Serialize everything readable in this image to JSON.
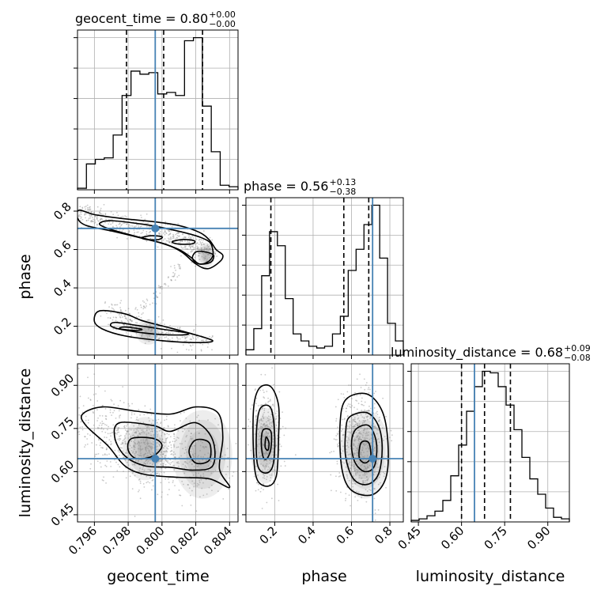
{
  "colors": {
    "truth": "#4682b4",
    "hist": "#000000",
    "grid": "#b0b0b0",
    "scatter": "#8a8a8a"
  },
  "chart_data": {
    "type": "corner",
    "parameters": [
      "geocent_time",
      "phase",
      "luminosity_distance"
    ],
    "truths": {
      "geocent_time": 0.7996,
      "phase": 0.71,
      "luminosity_distance": 0.645
    },
    "titles": [
      {
        "param": "geocent_time",
        "label": "geocent_time = 0.80",
        "plus": "+0.00",
        "minus": "−0.00"
      },
      {
        "param": "phase",
        "label": "phase = 0.56",
        "plus": "+0.13",
        "minus": "−0.38"
      },
      {
        "param": "luminosity_distance",
        "label": "luminosity_distance = 0.68",
        "plus": "+0.09",
        "minus": "−0.08"
      }
    ],
    "axes": {
      "geocent_time": {
        "range": [
          0.795,
          0.8045
        ],
        "ticks": [
          0.796,
          0.798,
          0.8,
          0.802,
          0.804
        ],
        "tick_labels": [
          "0.796",
          "0.798",
          "0.800",
          "0.802",
          "0.804"
        ]
      },
      "phase": {
        "range": [
          0.05,
          0.87
        ],
        "ticks": [
          0.2,
          0.4,
          0.6,
          0.8
        ],
        "tick_labels": [
          "0.2",
          "0.4",
          "0.6",
          "0.8"
        ]
      },
      "luminosity_distance": {
        "range": [
          0.425,
          0.975
        ],
        "ticks": [
          0.45,
          0.6,
          0.75,
          0.9
        ],
        "tick_labels": [
          "0.45",
          "0.60",
          "0.75",
          "0.90"
        ]
      }
    },
    "quantiles": {
      "geocent_time": [
        0.7979,
        0.8001,
        0.8024
      ],
      "phase": [
        0.18,
        0.56,
        0.69
      ],
      "luminosity_distance": [
        0.6,
        0.68,
        0.77
      ]
    },
    "histograms": {
      "geocent_time": {
        "range": [
          0.795,
          0.8045
        ],
        "counts": [
          0.01,
          0.17,
          0.2,
          0.21,
          0.36,
          0.62,
          0.78,
          0.76,
          0.77,
          0.63,
          0.64,
          0.62,
          0.98,
          1.0,
          0.55,
          0.25,
          0.03,
          0.02
        ]
      },
      "phase": {
        "range": [
          0.05,
          0.87
        ],
        "counts": [
          0.03,
          0.15,
          0.45,
          0.7,
          0.62,
          0.32,
          0.12,
          0.08,
          0.05,
          0.04,
          0.05,
          0.12,
          0.22,
          0.48,
          0.6,
          0.74,
          0.85,
          0.55,
          0.18,
          0.08
        ]
      },
      "luminosity_distance": {
        "range": [
          0.425,
          0.975
        ],
        "counts": [
          0.01,
          0.02,
          0.04,
          0.07,
          0.14,
          0.3,
          0.5,
          0.72,
          0.88,
          0.98,
          0.97,
          0.88,
          0.76,
          0.6,
          0.42,
          0.28,
          0.18,
          0.09,
          0.03,
          0.02
        ]
      }
    },
    "clusters": {
      "geocent_time|phase": [
        {
          "path": [
            [
              0.7951,
              0.79
            ],
            [
              0.7965,
              0.745
            ],
            [
              0.7985,
              0.71
            ],
            [
              0.8005,
              0.675
            ],
            [
              0.802,
              0.625
            ],
            [
              0.803,
              0.57
            ]
          ],
          "w": 0.00023,
          "h": 0.03,
          "n": 520,
          "peak": [
            0.8026,
            0.57
          ]
        },
        {
          "path": [
            [
              0.797,
              0.27
            ],
            [
              0.7985,
              0.2
            ],
            [
              0.8,
              0.165
            ],
            [
              0.803,
              0.1
            ]
          ],
          "w": 0.00035,
          "h": 0.03,
          "n": 300,
          "peak": [
            0.7992,
            0.17
          ]
        },
        {
          "path": [
            [
              0.7985,
              0.27
            ],
            [
              0.7995,
              0.35
            ],
            [
              0.8003,
              0.43
            ],
            [
              0.8012,
              0.52
            ]
          ],
          "w": 0.00012,
          "h": 0.02,
          "n": 70,
          "peak": null
        }
      ],
      "geocent_time|luminosity_distance": [
        {
          "path": [
            [
              0.7955,
              0.78
            ],
            [
              0.7975,
              0.7
            ],
            [
              0.7995,
              0.66
            ],
            [
              0.8015,
              0.65
            ],
            [
              0.8028,
              0.62
            ]
          ],
          "w": 0.0008,
          "h": 0.07,
          "n": 700,
          "peak": [
            0.8024,
            0.66
          ]
        },
        {
          "path": [
            [
              0.7985,
              0.7
            ],
            [
              0.8,
              0.66
            ]
          ],
          "w": 0.0006,
          "h": 0.05,
          "n": 250,
          "peak": [
            0.799,
            0.68
          ]
        }
      ],
      "phase|luminosity_distance": [
        {
          "path": [
            [
              0.15,
              0.82
            ],
            [
              0.16,
              0.7
            ],
            [
              0.16,
              0.62
            ]
          ],
          "w": 0.035,
          "h": 0.06,
          "n": 380,
          "peak": [
            0.15,
            0.69
          ]
        },
        {
          "path": [
            [
              0.63,
              0.78
            ],
            [
              0.66,
              0.68
            ],
            [
              0.66,
              0.58
            ]
          ],
          "w": 0.06,
          "h": 0.07,
          "n": 650,
          "peak": [
            0.67,
            0.66
          ]
        }
      ]
    },
    "contours": {
      "geocent_time|phase": [
        [
          [
            0.7951,
            0.805
          ],
          [
            0.796,
            0.782
          ],
          [
            0.7978,
            0.76
          ],
          [
            0.7995,
            0.745
          ],
          [
            0.801,
            0.725
          ],
          [
            0.8022,
            0.69
          ],
          [
            0.8028,
            0.65
          ],
          [
            0.8032,
            0.6
          ],
          [
            0.8036,
            0.57
          ],
          [
            0.8034,
            0.535
          ],
          [
            0.8027,
            0.5
          ],
          [
            0.802,
            0.525
          ],
          [
            0.8012,
            0.585
          ],
          [
            0.8003,
            0.625
          ],
          [
            0.799,
            0.655
          ],
          [
            0.7972,
            0.693
          ],
          [
            0.7955,
            0.726
          ],
          [
            0.795,
            0.765
          ]
        ],
        [
          [
            0.797,
            0.75
          ],
          [
            0.799,
            0.73
          ],
          [
            0.8005,
            0.705
          ],
          [
            0.802,
            0.672
          ],
          [
            0.8028,
            0.64
          ],
          [
            0.803,
            0.6
          ],
          [
            0.803,
            0.565
          ],
          [
            0.8027,
            0.535
          ],
          [
            0.8022,
            0.525
          ],
          [
            0.8017,
            0.56
          ],
          [
            0.801,
            0.6
          ],
          [
            0.7998,
            0.638
          ],
          [
            0.7983,
            0.672
          ],
          [
            0.7968,
            0.71
          ],
          [
            0.7963,
            0.735
          ]
        ],
        [
          [
            0.7994,
            0.672
          ],
          [
            0.8,
            0.666
          ],
          [
            0.7998,
            0.652
          ],
          [
            0.7991,
            0.652
          ],
          [
            0.7988,
            0.662
          ]
        ],
        [
          [
            0.8012,
            0.652
          ],
          [
            0.8019,
            0.646
          ],
          [
            0.8018,
            0.63
          ],
          [
            0.801,
            0.628
          ],
          [
            0.8006,
            0.64
          ]
        ],
        [
          [
            0.8021,
            0.59
          ],
          [
            0.803,
            0.575
          ],
          [
            0.8029,
            0.535
          ],
          [
            0.8022,
            0.525
          ],
          [
            0.8018,
            0.555
          ]
        ],
        [
          [
            0.7963,
            0.28
          ],
          [
            0.7978,
            0.265
          ],
          [
            0.7988,
            0.23
          ],
          [
            0.8001,
            0.2
          ],
          [
            0.8018,
            0.16
          ],
          [
            0.803,
            0.125
          ],
          [
            0.8021,
            0.115
          ],
          [
            0.8,
            0.125
          ],
          [
            0.7978,
            0.15
          ],
          [
            0.7965,
            0.185
          ],
          [
            0.796,
            0.225
          ]
        ],
        [
          [
            0.7972,
            0.22
          ],
          [
            0.7985,
            0.205
          ],
          [
            0.8,
            0.185
          ],
          [
            0.8015,
            0.165
          ],
          [
            0.8012,
            0.155
          ],
          [
            0.7995,
            0.16
          ],
          [
            0.7978,
            0.18
          ],
          [
            0.797,
            0.2
          ]
        ],
        [
          [
            0.7978,
            0.196
          ],
          [
            0.7988,
            0.185
          ],
          [
            0.7984,
            0.178
          ],
          [
            0.7975,
            0.187
          ]
        ]
      ],
      "geocent_time|luminosity_distance": [
        [
          [
            0.7953,
            0.8
          ],
          [
            0.7965,
            0.825
          ],
          [
            0.7985,
            0.81
          ],
          [
            0.8005,
            0.8
          ],
          [
            0.802,
            0.825
          ],
          [
            0.8033,
            0.805
          ],
          [
            0.8036,
            0.72
          ],
          [
            0.8034,
            0.61
          ],
          [
            0.804,
            0.545
          ],
          [
            0.8028,
            0.575
          ],
          [
            0.801,
            0.58
          ],
          [
            0.799,
            0.59
          ],
          [
            0.7978,
            0.62
          ],
          [
            0.7968,
            0.69
          ],
          [
            0.7955,
            0.76
          ]
        ],
        [
          [
            0.7975,
            0.77
          ],
          [
            0.7995,
            0.76
          ],
          [
            0.8005,
            0.74
          ],
          [
            0.802,
            0.77
          ],
          [
            0.803,
            0.71
          ],
          [
            0.803,
            0.62
          ],
          [
            0.8018,
            0.605
          ],
          [
            0.8005,
            0.615
          ],
          [
            0.799,
            0.62
          ],
          [
            0.7978,
            0.655
          ],
          [
            0.7972,
            0.72
          ]
        ],
        [
          [
            0.7982,
            0.715
          ],
          [
            0.7995,
            0.715
          ],
          [
            0.8,
            0.69
          ],
          [
            0.7995,
            0.655
          ],
          [
            0.7985,
            0.645
          ],
          [
            0.798,
            0.675
          ]
        ],
        [
          [
            0.802,
            0.71
          ],
          [
            0.8028,
            0.7
          ],
          [
            0.8028,
            0.64
          ],
          [
            0.802,
            0.63
          ],
          [
            0.8016,
            0.67
          ]
        ]
      ],
      "phase|luminosity_distance": [
        [
          [
            0.12,
            0.89
          ],
          [
            0.18,
            0.895
          ],
          [
            0.22,
            0.83
          ],
          [
            0.22,
            0.72
          ],
          [
            0.21,
            0.59
          ],
          [
            0.17,
            0.55
          ],
          [
            0.11,
            0.57
          ],
          [
            0.09,
            0.66
          ],
          [
            0.09,
            0.82
          ]
        ],
        [
          [
            0.125,
            0.82
          ],
          [
            0.18,
            0.82
          ],
          [
            0.2,
            0.72
          ],
          [
            0.19,
            0.62
          ],
          [
            0.15,
            0.595
          ],
          [
            0.11,
            0.625
          ],
          [
            0.105,
            0.74
          ]
        ],
        [
          [
            0.14,
            0.745
          ],
          [
            0.18,
            0.74
          ],
          [
            0.18,
            0.68
          ],
          [
            0.16,
            0.645
          ],
          [
            0.14,
            0.65
          ],
          [
            0.13,
            0.7
          ]
        ],
        [
          [
            0.155,
            0.72
          ],
          [
            0.17,
            0.7
          ],
          [
            0.165,
            0.675
          ],
          [
            0.15,
            0.685
          ]
        ],
        [
          [
            0.57,
            0.85
          ],
          [
            0.68,
            0.87
          ],
          [
            0.76,
            0.81
          ],
          [
            0.79,
            0.7
          ],
          [
            0.78,
            0.58
          ],
          [
            0.71,
            0.52
          ],
          [
            0.6,
            0.535
          ],
          [
            0.55,
            0.61
          ],
          [
            0.54,
            0.76
          ]
        ],
        [
          [
            0.59,
            0.79
          ],
          [
            0.68,
            0.805
          ],
          [
            0.74,
            0.76
          ],
          [
            0.76,
            0.68
          ],
          [
            0.74,
            0.59
          ],
          [
            0.68,
            0.555
          ],
          [
            0.61,
            0.575
          ],
          [
            0.57,
            0.65
          ],
          [
            0.57,
            0.74
          ]
        ],
        [
          [
            0.62,
            0.745
          ],
          [
            0.69,
            0.76
          ],
          [
            0.73,
            0.7
          ],
          [
            0.72,
            0.62
          ],
          [
            0.67,
            0.6
          ],
          [
            0.62,
            0.63
          ],
          [
            0.6,
            0.69
          ]
        ],
        [
          [
            0.65,
            0.7
          ],
          [
            0.69,
            0.7
          ],
          [
            0.7,
            0.65
          ],
          [
            0.67,
            0.63
          ],
          [
            0.64,
            0.65
          ]
        ]
      ]
    }
  }
}
